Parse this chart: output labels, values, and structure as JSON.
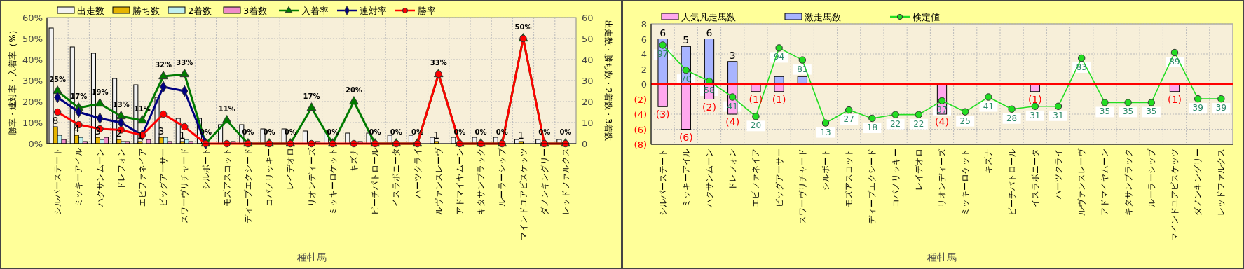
{
  "chart_data": [
    {
      "type": "bar",
      "xlabel": "種牡馬",
      "ylabel": "勝率・連対率・入着率（%）",
      "y2label": "出走数・勝ち数・2着数・3着数",
      "legend": "top",
      "grid": true,
      "categories": [
        "シルバーステート",
        "ミッキーアイル",
        "ハクサンムーン",
        "ドレフォン",
        "エピファネイア",
        "ビッグアーサー",
        "スワーヴリチャード",
        "シルポート",
        "モズアスコット",
        "ディープエクシード",
        "コパノリッキー",
        "レイデオロ",
        "リオンディーズ",
        "ミッキーロケット",
        "キズナ",
        "ビーチパトロール",
        "イスラボニータ",
        "ハーツクライ",
        "ルヴァンスレーヴ",
        "アドマイヤムーン",
        "キタサンブラック",
        "ルーラーシップ",
        "マインドユアビスケッツ",
        "ダノンキングリー",
        "レッドファルクス"
      ],
      "ylim": [
        0,
        60
      ],
      "yticks": [
        {
          "value": 0,
          "label": "0%"
        },
        {
          "value": 10,
          "label": "10%"
        },
        {
          "value": 20,
          "label": "20%"
        },
        {
          "value": 30,
          "label": "30%"
        },
        {
          "value": 40,
          "label": "40%"
        },
        {
          "value": 50,
          "label": "50%"
        },
        {
          "value": 60,
          "label": "60%"
        }
      ],
      "y2lim": [
        0,
        60
      ],
      "y2ticks": [
        0,
        10,
        20,
        30,
        40,
        50,
        60
      ],
      "series": [
        {
          "name": "出走数",
          "axis": "y2",
          "color": "#f2f2f2",
          "values": [
            55,
            46,
            43,
            31,
            28,
            22,
            12,
            12,
            9,
            9,
            7,
            7,
            6,
            6,
            5,
            5,
            4,
            4,
            3,
            3,
            3,
            3,
            2,
            2,
            2
          ]
        },
        {
          "name": "勝ち数",
          "axis": "y2",
          "color": "#e6b400",
          "values": [
            8,
            4,
            3,
            2,
            1,
            3,
            1,
            0,
            0,
            0,
            0,
            0,
            0,
            0,
            0,
            0,
            0,
            0,
            1,
            0,
            0,
            0,
            1,
            0,
            0
          ],
          "value_labels": [
            "8",
            "4",
            "3",
            "2",
            "1",
            "3",
            "1",
            null,
            null,
            null,
            null,
            null,
            null,
            null,
            null,
            null,
            null,
            null,
            "1",
            null,
            null,
            null,
            "1",
            null,
            null
          ]
        },
        {
          "name": "2着数",
          "axis": "y2",
          "color": "#bff0f0",
          "values": [
            4,
            3,
            2,
            1,
            0,
            3,
            2,
            0,
            0,
            0,
            0,
            0,
            0,
            0,
            0,
            0,
            0,
            0,
            0,
            0,
            0,
            0,
            0,
            0,
            0
          ]
        },
        {
          "name": "3着数",
          "axis": "y2",
          "color": "#f08cc8",
          "values": [
            2,
            1,
            3,
            1,
            2,
            1,
            1,
            0,
            1,
            0,
            0,
            0,
            1,
            0,
            1,
            0,
            0,
            0,
            0,
            0,
            0,
            0,
            0,
            0,
            0
          ]
        },
        {
          "name": "入着率",
          "type": "line",
          "axis": "y",
          "color": "#007a00",
          "marker": "triangle",
          "values": [
            25,
            17,
            19,
            13,
            11,
            32,
            33,
            0,
            11,
            0,
            0,
            0,
            17,
            0,
            20,
            0,
            0,
            0,
            33,
            0,
            0,
            0,
            50,
            0,
            0
          ],
          "value_labels": [
            "25%",
            "17%",
            "19%",
            "13%",
            "11%",
            "32%",
            "33%",
            "0%",
            "11%",
            "0%",
            "0%",
            "0%",
            "17%",
            "0%",
            "20%",
            "0%",
            "0%",
            "0%",
            "33%",
            "0%",
            "0%",
            "0%",
            "50%",
            "0%",
            "0%"
          ]
        },
        {
          "name": "連対率",
          "type": "line",
          "axis": "y",
          "color": "#000080",
          "marker": "diamond",
          "values": [
            22,
            15,
            12,
            10,
            4,
            27,
            25,
            0,
            null,
            null,
            null,
            null,
            null,
            null,
            null,
            null,
            null,
            null,
            null,
            null,
            null,
            null,
            null,
            null,
            null
          ]
        },
        {
          "name": "勝率",
          "type": "line",
          "axis": "y",
          "color": "#ff0000",
          "marker": "circle",
          "values": [
            15,
            9,
            7,
            6.5,
            4,
            14,
            8,
            0,
            0,
            0,
            0,
            0,
            0,
            0,
            0,
            0,
            0,
            0,
            33,
            0,
            0,
            0,
            50,
            0,
            0
          ]
        }
      ]
    },
    {
      "type": "bar",
      "stacked": true,
      "xlabel": "種牡馬",
      "legend": "top",
      "grid": true,
      "tick_labels": "xy",
      "categories": [
        "シルバーステート",
        "ミッキーアイル",
        "ハクサンムーン",
        "ドレフォン",
        "エピファネイア",
        "ビッグアーサー",
        "スワーヴリチャード",
        "シルポート",
        "モズアスコット",
        "ディープエクシード",
        "コパノリッキー",
        "レイデオロ",
        "リオンディーズ",
        "ミッキーロケット",
        "キズナ",
        "ビーチパトロール",
        "イスラボニータ",
        "ハーツクライ",
        "ルヴァンスレーヴ",
        "アドマイヤムーン",
        "キタサンブラック",
        "ルーラーシップ",
        "マインドユアビスケッツ",
        "ダノンキングリー",
        "レッドファルクス"
      ],
      "ylim": [
        -8,
        8
      ],
      "yticks": [
        {
          "value": -8,
          "label": "(8)"
        },
        {
          "value": -6,
          "label": "(6)"
        },
        {
          "value": -4,
          "label": "(4)"
        },
        {
          "value": -2,
          "label": "(2)"
        },
        0,
        2,
        4,
        6,
        8
      ],
      "y2lim": [
        -10,
        120
      ],
      "ref_lines": [
        {
          "axis": "y",
          "value": 0,
          "color": "#ff0000"
        }
      ],
      "series": [
        {
          "name": "人気凡走馬数",
          "color": "#ffa8ee",
          "values": [
            -3,
            -6,
            -2,
            -4,
            -1,
            -1,
            0,
            0,
            0,
            0,
            0,
            0,
            -4,
            0,
            0,
            0,
            -1,
            0,
            0,
            0,
            0,
            0,
            -1,
            0,
            0
          ],
          "value_labels": [
            "(3)",
            "(6)",
            "(2)",
            "(4)",
            "(1)",
            "(1)",
            null,
            null,
            null,
            null,
            null,
            null,
            "(4)",
            null,
            null,
            null,
            "(1)",
            null,
            null,
            null,
            null,
            null,
            "(1)",
            null,
            null
          ]
        },
        {
          "name": "激走馬数",
          "color": "#a8b4ff",
          "values": [
            6,
            5,
            6,
            3,
            0,
            1,
            1,
            0,
            0,
            0,
            0,
            0,
            0,
            0,
            0,
            0,
            0,
            0,
            0,
            0,
            0,
            0,
            0,
            0,
            0
          ],
          "value_labels": [
            "6",
            "5",
            "6",
            "3",
            null,
            null,
            null,
            null,
            null,
            null,
            null,
            null,
            null,
            null,
            null,
            null,
            null,
            null,
            null,
            null,
            null,
            null,
            null,
            null,
            null
          ]
        },
        {
          "name": "検定値",
          "type": "line",
          "axis": "y2",
          "color": "#22dd22",
          "marker": "circle",
          "values": [
            97,
            70,
            58,
            41,
            20,
            94,
            81,
            13,
            27,
            18,
            22,
            22,
            37,
            25,
            41,
            28,
            31,
            31,
            83,
            35,
            35,
            35,
            89,
            39,
            39
          ],
          "value_labels": [
            "97",
            "70",
            "58",
            "41",
            "20",
            "94",
            "81",
            "13",
            "27",
            "18",
            "22",
            "22",
            "37",
            "25",
            "41",
            "28",
            "31",
            "31",
            "83",
            "35",
            "35",
            "35",
            "89",
            "39",
            "39"
          ]
        }
      ]
    }
  ]
}
